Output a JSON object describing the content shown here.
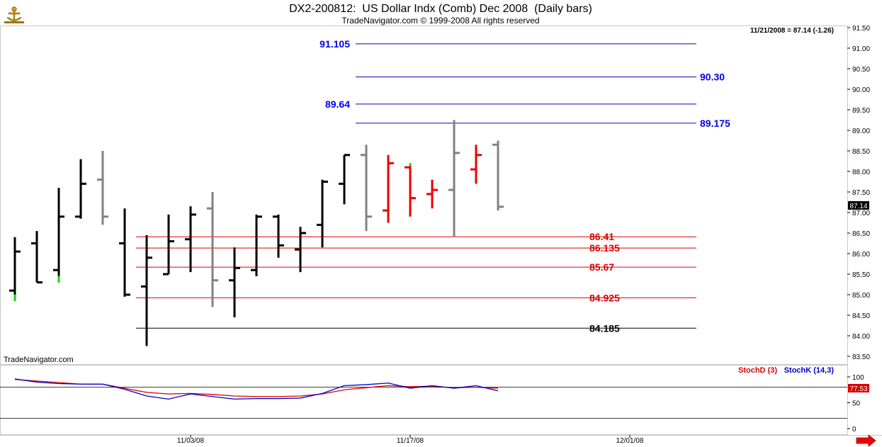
{
  "chart_data": {
    "type": "ohlc",
    "title": "DX2-200812:  US Dollar Indx (Comb) Dec 2008  (Daily bars)",
    "subtitle": "TradeNavigator.com © 1999-2008 All rights reserved",
    "last_info": "11/21/2008 = 87.14 (-1.26)",
    "watermark": "TradeNavigator.com",
    "last_price": "87.14",
    "price_axis": {
      "min": 83.25,
      "max": 91.5,
      "ticks": [
        "83.50",
        "84.00",
        "84.50",
        "85.00",
        "85.50",
        "86.00",
        "86.50",
        "87.00",
        "87.50",
        "88.00",
        "88.50",
        "89.00",
        "89.50",
        "90.00",
        "90.50",
        "91.00",
        "91.50"
      ]
    },
    "date_ticks": [
      {
        "label": "11/03/08",
        "bar": 8
      },
      {
        "label": "11/17/08",
        "bar": 18
      },
      {
        "label": "12/01/08",
        "bar": 28
      }
    ],
    "bars": [
      {
        "o": 85.1,
        "h": 86.4,
        "l": 84.85,
        "c": 86.05,
        "color": "#000000",
        "low_color": "#00dd00"
      },
      {
        "o": 86.25,
        "h": 86.55,
        "l": 85.3,
        "c": 85.3,
        "color": "#000000"
      },
      {
        "o": 85.6,
        "h": 87.6,
        "l": 85.3,
        "c": 86.9,
        "color": "#000000",
        "low_color": "#00dd00"
      },
      {
        "o": 86.9,
        "h": 88.3,
        "l": 86.85,
        "c": 87.7,
        "color": "#000000"
      },
      {
        "o": 87.8,
        "h": 88.5,
        "l": 86.7,
        "c": 86.9,
        "color": "#808080"
      },
      {
        "o": 86.25,
        "h": 87.1,
        "l": 84.95,
        "c": 85.0,
        "color": "#000000"
      },
      {
        "o": 85.2,
        "h": 86.45,
        "l": 83.75,
        "c": 85.9,
        "color": "#000000"
      },
      {
        "o": 85.5,
        "h": 86.95,
        "l": 85.5,
        "c": 86.3,
        "color": "#000000"
      },
      {
        "o": 86.35,
        "h": 87.15,
        "l": 85.55,
        "c": 86.95,
        "color": "#000000"
      },
      {
        "o": 87.1,
        "h": 87.5,
        "l": 84.7,
        "c": 85.35,
        "color": "#808080"
      },
      {
        "o": 85.35,
        "h": 86.15,
        "l": 84.45,
        "c": 85.65,
        "color": "#000000"
      },
      {
        "o": 85.6,
        "h": 86.95,
        "l": 85.45,
        "c": 86.9,
        "color": "#000000"
      },
      {
        "o": 86.9,
        "h": 86.95,
        "l": 85.9,
        "c": 86.2,
        "color": "#000000"
      },
      {
        "o": 86.1,
        "h": 86.65,
        "l": 85.55,
        "c": 86.5,
        "color": "#000000"
      },
      {
        "o": 86.7,
        "h": 87.8,
        "l": 86.15,
        "c": 87.75,
        "color": "#000000"
      },
      {
        "o": 87.7,
        "h": 88.4,
        "l": 87.2,
        "c": 88.4,
        "color": "#000000"
      },
      {
        "o": 88.4,
        "h": 88.65,
        "l": 86.55,
        "c": 86.9,
        "color": "#808080"
      },
      {
        "o": 87.05,
        "h": 88.4,
        "l": 86.75,
        "c": 88.2,
        "color": "#ee0000"
      },
      {
        "o": 88.1,
        "h": 88.2,
        "l": 86.9,
        "c": 87.35,
        "color": "#ee0000",
        "high_color": "#00dd00"
      },
      {
        "o": 87.45,
        "h": 87.8,
        "l": 87.1,
        "c": 87.55,
        "color": "#ee0000"
      },
      {
        "o": 87.55,
        "h": 89.25,
        "l": 86.4,
        "c": 88.45,
        "color": "#808080"
      },
      {
        "o": 88.05,
        "h": 88.65,
        "l": 87.7,
        "c": 88.4,
        "color": "#ee0000"
      },
      {
        "o": 88.65,
        "h": 88.75,
        "l": 87.05,
        "c": 87.14,
        "color": "#808080"
      }
    ],
    "levels": [
      {
        "value": 91.105,
        "label": "91.105",
        "color": "#0000cc",
        "text_color": "#0000ee",
        "label_side": "left",
        "start_bar": 16
      },
      {
        "value": 90.3,
        "label": "90.30",
        "color": "#0000cc",
        "text_color": "#0000ee",
        "label_side": "right",
        "start_bar": 16
      },
      {
        "value": 89.64,
        "label": "89.64",
        "color": "#0000cc",
        "text_color": "#0000ee",
        "label_side": "left",
        "start_bar": 16
      },
      {
        "value": 89.175,
        "label": "89.175",
        "color": "#0000cc",
        "text_color": "#0000ee",
        "label_side": "right",
        "start_bar": 16
      },
      {
        "value": 86.41,
        "label": "86.41",
        "color": "#dd0000",
        "text_color": "#dd0000",
        "label_side": "right",
        "start_bar": 6
      },
      {
        "value": 86.135,
        "label": "86.135",
        "color": "#dd0000",
        "text_color": "#dd0000",
        "label_side": "right",
        "start_bar": 6
      },
      {
        "value": 85.67,
        "label": "85.67",
        "color": "#dd0000",
        "text_color": "#dd0000",
        "label_side": "right",
        "start_bar": 6
      },
      {
        "value": 84.925,
        "label": "84.925",
        "color": "#dd0000",
        "text_color": "#dd0000",
        "label_side": "right",
        "start_bar": 6
      },
      {
        "value": 84.185,
        "label": "84.185",
        "color": "#000000",
        "text_color": "#000000",
        "label_side": "right",
        "start_bar": 6
      }
    ],
    "stochastic": {
      "legend_d": "StochD (3)",
      "legend_k": "StochK (14,3)",
      "d_color": "#dd0000",
      "k_color": "#0000cc",
      "ticks": [
        "0",
        "50",
        "100"
      ],
      "reference_levels": [
        20,
        80
      ],
      "last_value": "77.53",
      "d_values": [
        95,
        92,
        89,
        86,
        86,
        78,
        70,
        67,
        68,
        66,
        63,
        62,
        62,
        63,
        67,
        75,
        79,
        83,
        81,
        82,
        79,
        80,
        78
      ],
      "k_values": [
        96,
        90,
        87,
        86,
        86,
        76,
        63,
        57,
        67,
        62,
        57,
        58,
        58,
        59,
        68,
        83,
        85,
        88,
        78,
        83,
        78,
        83,
        73
      ]
    }
  }
}
